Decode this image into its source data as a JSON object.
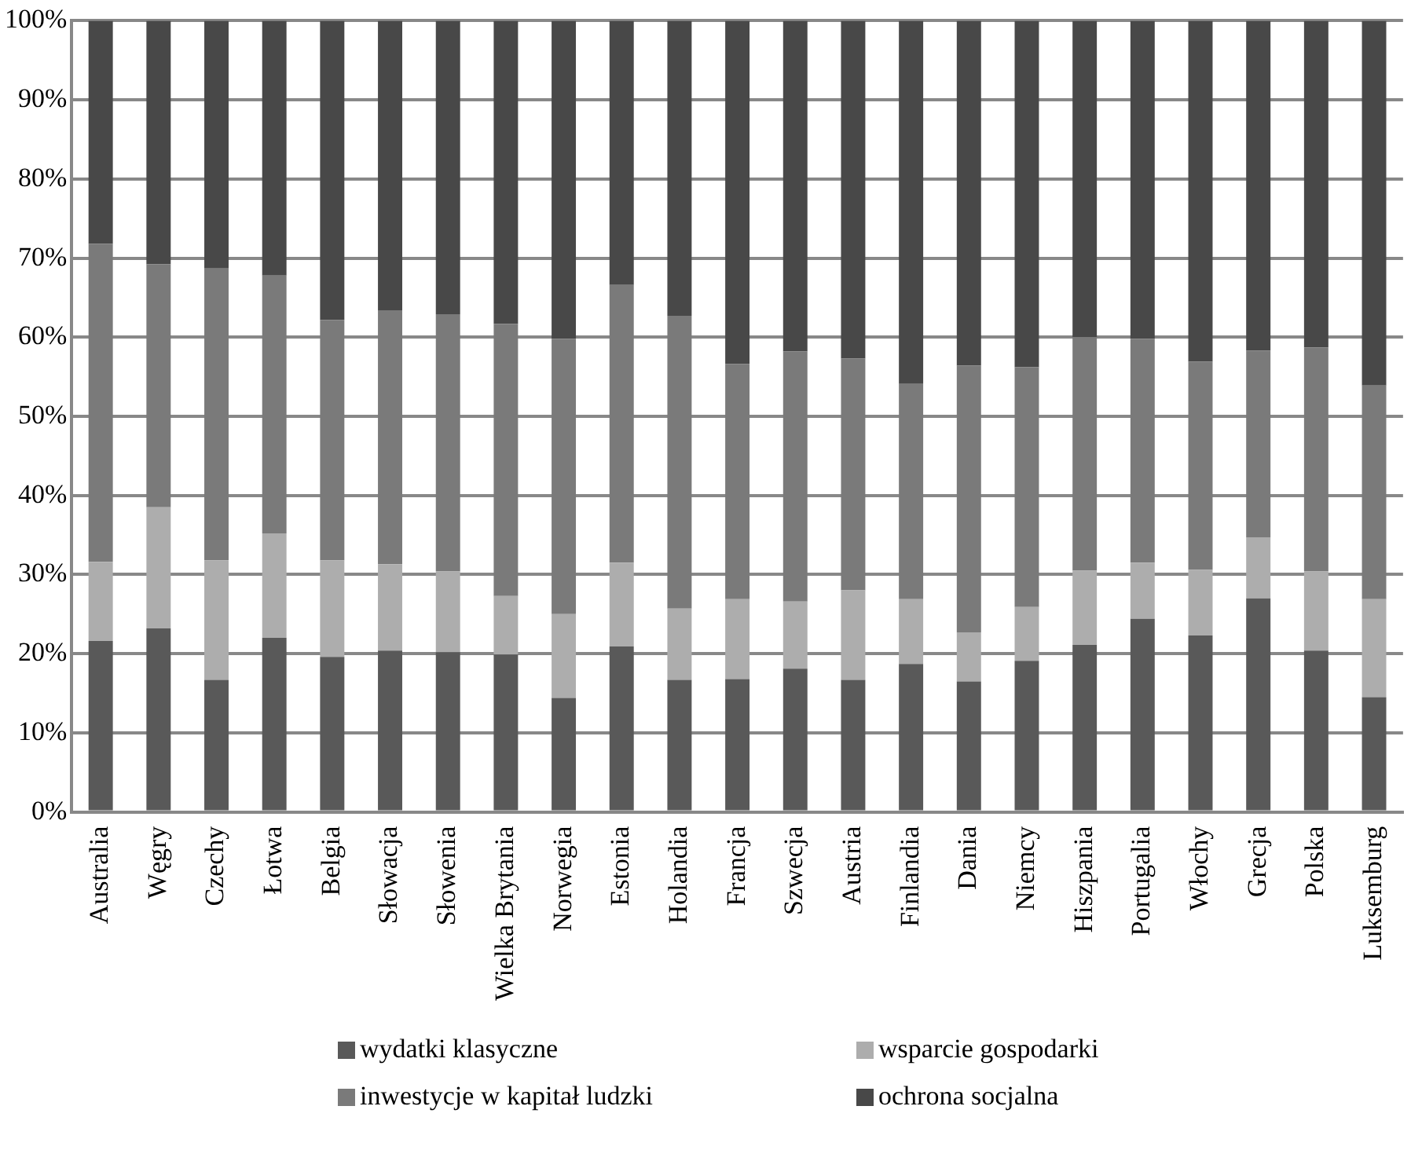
{
  "chart_data": {
    "type": "bar",
    "stacked": true,
    "categories": [
      "Australia",
      "Węgry",
      "Czechy",
      "Łotwa",
      "Belgia",
      "Słowacja",
      "Słowenia",
      "Wielka Brytania",
      "Norwegia",
      "Estonia",
      "Holandia",
      "Francja",
      "Szwecja",
      "Austria",
      "Finlandia",
      "Dania",
      "Niemcy",
      "Hiszpania",
      "Portugalia",
      "Włochy",
      "Grecja",
      "Polska",
      "Luksemburg"
    ],
    "series": [
      {
        "name": "wydatki klasyczne",
        "color": "#595959",
        "values": [
          21.6,
          23.2,
          16.7,
          22.0,
          19.6,
          20.4,
          20.2,
          19.9,
          14.4,
          20.9,
          16.7,
          16.8,
          18.1,
          16.7,
          18.7,
          16.5,
          19.1,
          21.1,
          24.4,
          22.3,
          27.0,
          20.4,
          14.5
        ]
      },
      {
        "name": "wsparcie gospodarki",
        "color": "#adadad",
        "values": [
          10.0,
          15.3,
          15.1,
          13.2,
          12.2,
          10.9,
          10.2,
          7.4,
          10.6,
          10.6,
          9.0,
          10.1,
          8.5,
          11.3,
          8.2,
          6.2,
          6.8,
          9.4,
          7.1,
          8.3,
          7.7,
          10.0,
          12.4
        ]
      },
      {
        "name": "inwestycje w kapitał ludzki",
        "color": "#7a7a7a",
        "values": [
          40.2,
          30.7,
          36.9,
          32.6,
          30.4,
          32.1,
          32.5,
          34.4,
          34.8,
          35.1,
          37.0,
          29.7,
          31.6,
          29.3,
          27.2,
          33.7,
          30.3,
          29.5,
          28.3,
          26.3,
          23.6,
          28.3,
          27.0
        ]
      },
      {
        "name": "ochrona socjalna",
        "color": "#484848",
        "values": [
          28.2,
          30.8,
          31.3,
          32.2,
          37.8,
          36.6,
          37.1,
          38.3,
          40.2,
          33.4,
          37.3,
          43.4,
          41.8,
          42.7,
          45.9,
          43.6,
          43.8,
          40.0,
          40.2,
          43.1,
          41.7,
          41.3,
          46.1
        ]
      }
    ],
    "ylim": [
      0,
      100
    ],
    "yticks": [
      {
        "value": 0,
        "label": "0%"
      },
      {
        "value": 10,
        "label": "10%"
      },
      {
        "value": 20,
        "label": "20%"
      },
      {
        "value": 30,
        "label": "30%"
      },
      {
        "value": 40,
        "label": "40%"
      },
      {
        "value": 50,
        "label": "50%"
      },
      {
        "value": 60,
        "label": "60%"
      },
      {
        "value": 70,
        "label": "70%"
      },
      {
        "value": 80,
        "label": "80%"
      },
      {
        "value": 90,
        "label": "90%"
      },
      {
        "value": 100,
        "label": "100%"
      }
    ],
    "grid": "y",
    "legend": "bottom"
  }
}
